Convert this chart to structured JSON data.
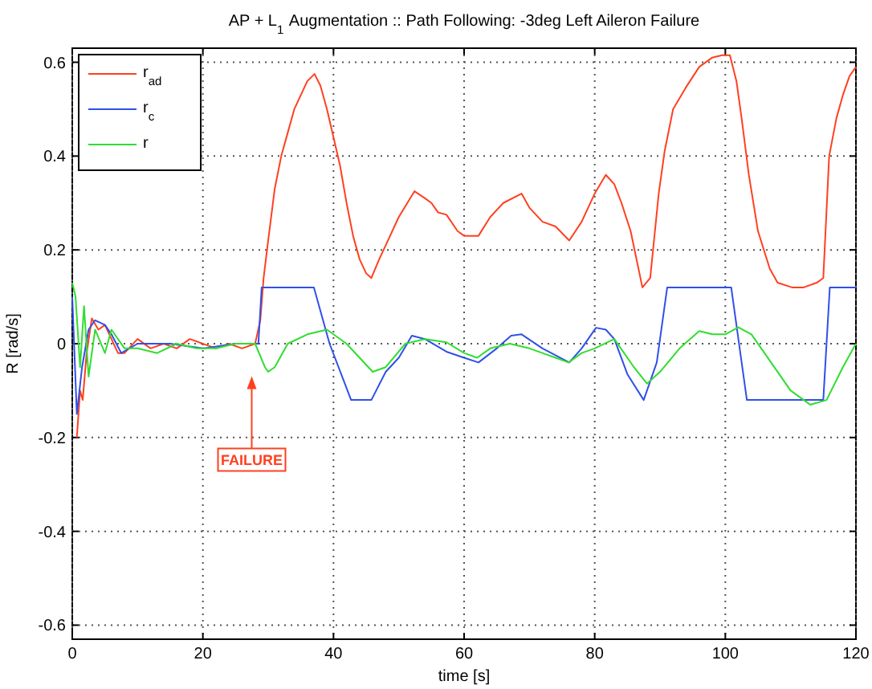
{
  "chart_data": {
    "type": "line",
    "title": "AP + L$_{1}$ Augmentation :: Path Following: -3deg Left Aileron Failure",
    "xlabel": "time [s]",
    "ylabel": "R [rad/s]",
    "xlim": [
      0,
      120
    ],
    "xticks": [
      0,
      20,
      40,
      60,
      80,
      100,
      120
    ],
    "ylim": [
      -0.63,
      0.63
    ],
    "yticks": [
      -0.6,
      -0.4,
      -0.2,
      0,
      0.2,
      0.4,
      0.6
    ],
    "grid": true,
    "legend": "top left",
    "line_style": "solid",
    "marker": "none",
    "annotations": [
      "FAILURE"
    ],
    "series": [
      {
        "name": "r$_{ad}$",
        "color": "#ff4020",
        "x": [
          0.7,
          1.2,
          1.6,
          2.2,
          3,
          4,
          5,
          6,
          7,
          8,
          10,
          12,
          14,
          16,
          18,
          20,
          22,
          24,
          26,
          28,
          28.8,
          29.3,
          30,
          31,
          32,
          33,
          34,
          35,
          36,
          37.1,
          38,
          39,
          40,
          41,
          42,
          43,
          44,
          45,
          45.8,
          47,
          48,
          50,
          52.4,
          54,
          55,
          56,
          57.3,
          59,
          60,
          62.2,
          64,
          66,
          68.8,
          70,
          72,
          74,
          76.1,
          78,
          80,
          81.7,
          83,
          84.1,
          85.5,
          87.3,
          88.5,
          89.8,
          90.7,
          92,
          93.9,
          96,
          98,
          99.5,
          100.7,
          101.7,
          102.5,
          103.6,
          105,
          106.8,
          108,
          110.2,
          112,
          114,
          115,
          115.9,
          117,
          118,
          119,
          120
        ],
        "values": [
          -0.2,
          -0.1,
          -0.12,
          -0.02,
          0.054,
          0.03,
          0.04,
          0.01,
          -0.02,
          -0.02,
          0.01,
          -0.01,
          0.0,
          -0.01,
          0.01,
          0.0,
          -0.01,
          0.0,
          -0.01,
          0.0,
          0.05,
          0.14,
          0.22,
          0.33,
          0.4,
          0.45,
          0.5,
          0.53,
          0.56,
          0.575,
          0.55,
          0.5,
          0.44,
          0.38,
          0.3,
          0.23,
          0.18,
          0.15,
          0.14,
          0.18,
          0.21,
          0.27,
          0.325,
          0.31,
          0.3,
          0.28,
          0.275,
          0.24,
          0.23,
          0.23,
          0.27,
          0.3,
          0.32,
          0.29,
          0.26,
          0.25,
          0.22,
          0.26,
          0.32,
          0.36,
          0.34,
          0.3,
          0.24,
          0.12,
          0.14,
          0.32,
          0.41,
          0.5,
          0.545,
          0.59,
          0.61,
          0.615,
          0.615,
          0.56,
          0.48,
          0.36,
          0.24,
          0.16,
          0.13,
          0.12,
          0.12,
          0.13,
          0.14,
          0.4,
          0.48,
          0.53,
          0.57,
          0.59
        ]
      },
      {
        "name": "r$_{c}$",
        "color": "#3050e8",
        "x": [
          0,
          0.7,
          1.5,
          2.5,
          3.5,
          5,
          6,
          7.5,
          10,
          15,
          20,
          25,
          28.5,
          29,
          37,
          39.4,
          42.7,
          45.8,
          48,
          50,
          52,
          54,
          57.3,
          60,
          62.2,
          65,
          67.2,
          68.8,
          72,
          76.1,
          78,
          80.2,
          81.7,
          83,
          85,
          87.5,
          89.5,
          91.1,
          100.9,
          103.3,
          115,
          116,
          120
        ],
        "values": [
          0.1,
          -0.15,
          -0.05,
          0.03,
          0.05,
          0.04,
          0.02,
          -0.02,
          0.0,
          0.0,
          -0.01,
          0.0,
          0.0,
          0.12,
          0.12,
          0.0,
          -0.12,
          -0.12,
          -0.06,
          -0.03,
          0.017,
          0.01,
          -0.017,
          -0.03,
          -0.04,
          -0.01,
          0.017,
          0.02,
          -0.01,
          -0.04,
          -0.01,
          0.034,
          0.03,
          0.01,
          -0.065,
          -0.12,
          -0.04,
          0.12,
          0.12,
          -0.12,
          -0.12,
          0.12,
          0.12
        ]
      },
      {
        "name": "r",
        "color": "#30dd30",
        "x": [
          0,
          0.5,
          1.2,
          1.8,
          2.5,
          3.5,
          5,
          6,
          8,
          10,
          13,
          16,
          19,
          22,
          25,
          28,
          29.5,
          30,
          31,
          33,
          36,
          39,
          42,
          44,
          46,
          48,
          51,
          54,
          57.3,
          60,
          62,
          64,
          67,
          70,
          72,
          74,
          76,
          78,
          80,
          83,
          86,
          88,
          90,
          93,
          96,
          98,
          100,
          102,
          104,
          107,
          110,
          113,
          115.5,
          118,
          120
        ],
        "values": [
          0.13,
          0.1,
          -0.05,
          0.08,
          -0.07,
          0.03,
          -0.02,
          0.03,
          -0.01,
          -0.01,
          -0.02,
          0.0,
          -0.01,
          -0.01,
          0.0,
          0.0,
          -0.05,
          -0.06,
          -0.05,
          0.0,
          0.02,
          0.03,
          0.0,
          -0.03,
          -0.06,
          -0.05,
          0.0,
          0.01,
          0.003,
          -0.02,
          -0.03,
          -0.01,
          0.0,
          -0.01,
          -0.02,
          -0.03,
          -0.04,
          -0.02,
          -0.01,
          0.01,
          -0.05,
          -0.085,
          -0.06,
          -0.01,
          0.027,
          0.02,
          0.02,
          0.035,
          0.02,
          -0.04,
          -0.1,
          -0.13,
          -0.12,
          -0.05,
          0.0
        ]
      }
    ]
  }
}
